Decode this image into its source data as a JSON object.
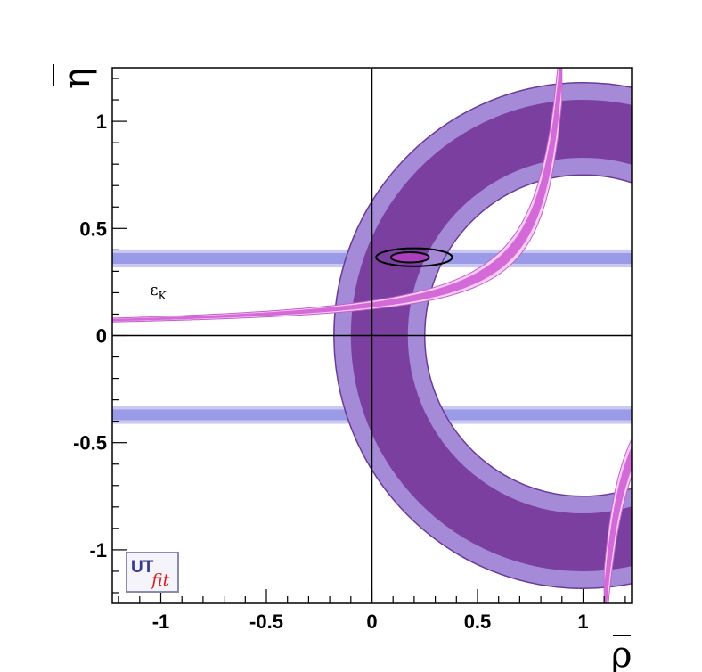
{
  "chart_data": {
    "type": "contour",
    "xlabel": "ρ",
    "ylabel": "η",
    "xlim": [
      -1.23,
      1.23
    ],
    "ylim": [
      -1.25,
      1.25
    ],
    "x_ticks": [
      {
        "value": -1,
        "label": "-1"
      },
      {
        "value": -0.5,
        "label": "-0.5"
      },
      {
        "value": 0,
        "label": "0"
      },
      {
        "value": 0.5,
        "label": "0.5"
      },
      {
        "value": 1,
        "label": "1"
      }
    ],
    "y_ticks": [
      {
        "value": 1,
        "label": "1"
      },
      {
        "value": 0.5,
        "label": "0.5"
      },
      {
        "value": 0,
        "label": "0"
      },
      {
        "value": -0.5,
        "label": "-0.5"
      },
      {
        "value": -1,
        "label": "-1"
      }
    ],
    "constraints": [
      {
        "kind": "horizontal-band",
        "y_center": 0.36,
        "half_width_inner": 0.025,
        "half_width_outer": 0.042,
        "color": "#9a9ae6",
        "edge": "#c8c8f2"
      },
      {
        "kind": "horizontal-band",
        "y_center": -0.37,
        "half_width_inner": 0.025,
        "half_width_outer": 0.042,
        "color": "#9a9ae6",
        "edge": "#c8c8f2"
      },
      {
        "kind": "ring",
        "center": [
          1,
          0
        ],
        "r_outer_95": 1.18,
        "r_outer_68": 1.1,
        "r_inner_68": 0.83,
        "r_inner_95": 0.75,
        "color_68": "#7b3fa0",
        "color_95": "#a58ad8"
      },
      {
        "kind": "hyperbola",
        "label": "εK",
        "k_mid": 0.128,
        "k_inner_half": 0.012,
        "k_outer_half": 0.02,
        "color": "#d46ad8",
        "edge": "#f5cff5"
      }
    ],
    "fit_contours": [
      {
        "level": "68%",
        "center": [
          0.18,
          0.365
        ],
        "rx": 0.09,
        "ry": 0.024
      },
      {
        "level": "95%",
        "center": [
          0.2,
          0.365
        ],
        "rx": 0.18,
        "ry": 0.042
      }
    ],
    "annotations": [
      {
        "text": "ε",
        "subscript": "K",
        "x": -1.05,
        "y": 0.19
      }
    ]
  },
  "logo": {
    "text_main": "UT",
    "text_sub": "fit"
  }
}
